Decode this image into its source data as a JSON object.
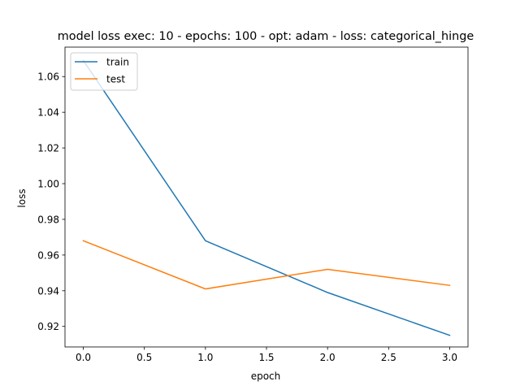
{
  "chart_data": {
    "type": "line",
    "title": "model loss exec: 10 - epochs: 100 - opt: adam - loss: categorical_hinge",
    "xlabel": "epoch",
    "ylabel": "loss",
    "xlim": [
      -0.15,
      3.15
    ],
    "ylim": [
      0.9085,
      1.0765
    ],
    "x_ticks": [
      0.0,
      0.5,
      1.0,
      1.5,
      2.0,
      2.5,
      3.0
    ],
    "x_tick_labels": [
      "0.0",
      "0.5",
      "1.0",
      "1.5",
      "2.0",
      "2.5",
      "3.0"
    ],
    "y_ticks": [
      0.92,
      0.94,
      0.96,
      0.98,
      1.0,
      1.02,
      1.04,
      1.06
    ],
    "y_tick_labels": [
      "0.92",
      "0.94",
      "0.96",
      "0.98",
      "1.00",
      "1.02",
      "1.04",
      "1.06"
    ],
    "grid": false,
    "legend_position": "top-left",
    "x": [
      0,
      1,
      2,
      3
    ],
    "series": [
      {
        "name": "train",
        "color": "#1f77b4",
        "values": [
          1.069,
          0.968,
          0.939,
          0.915
        ]
      },
      {
        "name": "test",
        "color": "#ff7f0e",
        "values": [
          0.968,
          0.941,
          0.952,
          0.943
        ]
      }
    ]
  }
}
